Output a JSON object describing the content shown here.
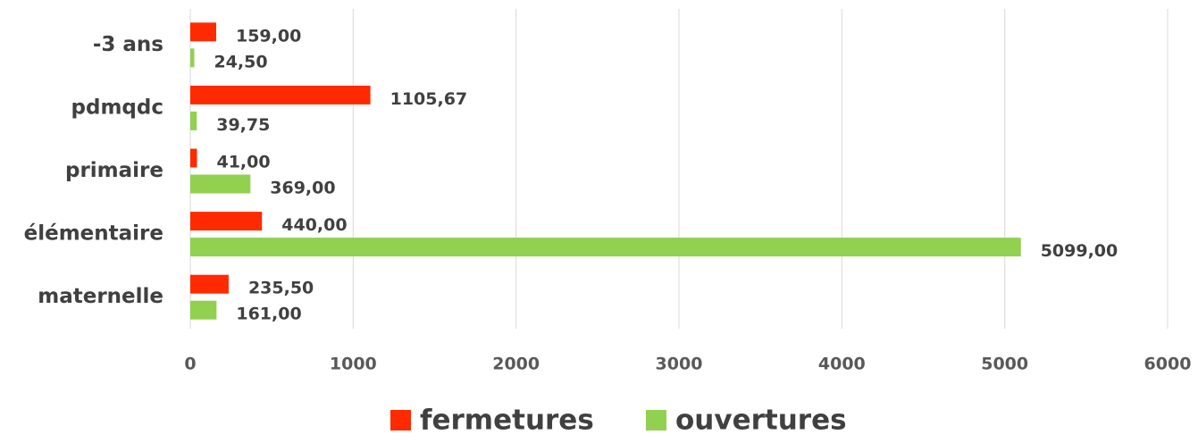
{
  "chart_data": {
    "type": "hbar",
    "categories": [
      "-3 ans",
      "pdmqdc",
      "primaire",
      "élémentaire",
      "maternelle"
    ],
    "series": [
      {
        "name": "fermetures",
        "color": "#ff2a00",
        "values": [
          159,
          1105.67,
          41,
          440,
          235.5
        ],
        "value_labels": [
          "159,00",
          "1105,67",
          "41,00",
          "440,00",
          "235,50"
        ]
      },
      {
        "name": "ouvertures",
        "color": "#92d050",
        "values": [
          24.5,
          39.75,
          369,
          5099,
          161
        ],
        "value_labels": [
          "24,50",
          "39,75",
          "369,00",
          "5099,00",
          "161,00"
        ]
      }
    ],
    "xlim": [
      0,
      6000
    ],
    "xticks": [
      0,
      1000,
      2000,
      3000,
      4000,
      5000,
      6000
    ],
    "grid": true,
    "legend": "bottom"
  }
}
